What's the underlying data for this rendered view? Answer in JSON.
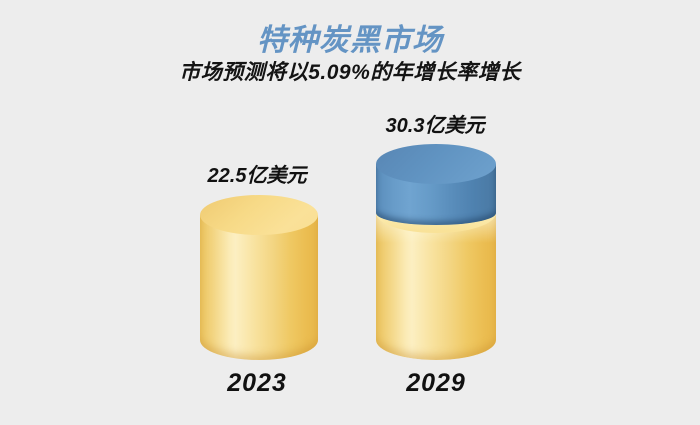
{
  "canvas_bg": "#EDEDED",
  "header": {
    "title": "特种炭黑市场",
    "title_color": "#6494C4",
    "subtitle": "市场预测将以5.09%的年增长率增长",
    "subtitle_color": "#141414"
  },
  "bars": [
    {
      "year": "2023",
      "value": 22.5,
      "value_label": "22.5亿美元",
      "segment_colors": [
        "#F7DC8C"
      ]
    },
    {
      "year": "2029",
      "value": 30.3,
      "value_label": "30.3亿美元",
      "segment_colors": [
        "#F7DC8C",
        "#6095C3"
      ]
    }
  ],
  "chart_data": {
    "type": "bar",
    "subtype": "3d-cylinder",
    "title": "特种炭黑市场",
    "subtitle": "市场预测将以5.09%的年增长率增长",
    "growth_rate_cagr": "5.09%",
    "categories": [
      "2023",
      "2029"
    ],
    "values": [
      22.5,
      30.3
    ],
    "unit": "亿美元",
    "data_labels": [
      "22.5亿美元",
      "30.3亿美元"
    ],
    "stacked_segments_2029": {
      "base": 22.5,
      "growth": 7.8
    },
    "legend": "none",
    "grid": false,
    "axes": "none",
    "bar_colors": {
      "base_yellow": "#F7DC8C",
      "growth_blue": "#6095C3"
    },
    "background": "#EDEDED"
  }
}
